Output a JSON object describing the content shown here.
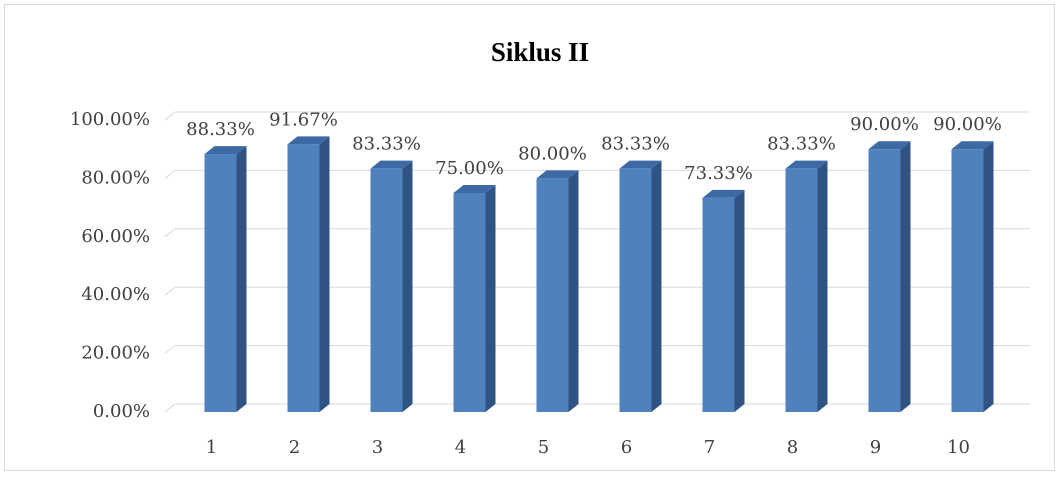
{
  "chart_data": {
    "type": "bar",
    "title": "Siklus II",
    "categories": [
      "1",
      "2",
      "3",
      "4",
      "5",
      "6",
      "7",
      "8",
      "9",
      "10"
    ],
    "values": [
      88.33,
      91.67,
      83.33,
      75,
      80,
      83.33,
      73.33,
      83.33,
      90,
      90
    ],
    "value_labels": [
      "88.33%",
      "91.67%",
      "83.33%",
      "75.00%",
      "80.00%",
      "83.33%",
      "73.33%",
      "83.33%",
      "90.00%",
      "90.00%"
    ],
    "color": "#4f81bd",
    "ylim": [
      0,
      100
    ],
    "yticks": [
      {
        "value": 0,
        "label": "0.00%"
      },
      {
        "value": 20,
        "label": "20.00%"
      },
      {
        "value": 40,
        "label": "40.00%"
      },
      {
        "value": 60,
        "label": "60.00%"
      },
      {
        "value": 80,
        "label": "80.00%"
      },
      {
        "value": 100,
        "label": "100.00%"
      }
    ],
    "grid": true
  }
}
